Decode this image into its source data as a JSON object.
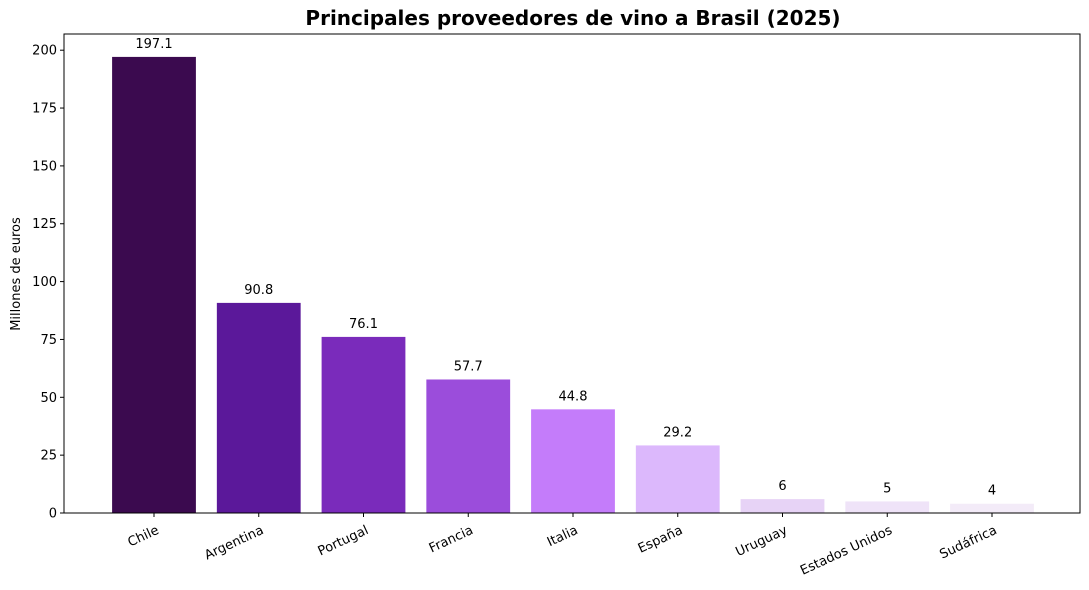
{
  "chart_data": {
    "type": "bar",
    "title": "Principales proveedores de vino a Brasil (2025)",
    "xlabel": "",
    "ylabel": "Millones de euros",
    "categories": [
      "Chile",
      "Argentina",
      "Portugal",
      "Francia",
      "Italia",
      "España",
      "Uruguay",
      "Estados Unidos",
      "Sudáfrica"
    ],
    "values": [
      197.1,
      90.8,
      76.1,
      57.7,
      44.8,
      29.2,
      6,
      5,
      4
    ],
    "value_labels": [
      "197.1",
      "90.8",
      "76.1",
      "57.7",
      "44.8",
      "29.2",
      "6",
      "5",
      "4"
    ],
    "colors": [
      "#3b0a4f",
      "#5b189a",
      "#7a2bbb",
      "#9b4ddb",
      "#c47cfa",
      "#dcb8fc",
      "#e7d3f6",
      "#efe3f8",
      "#f3ebf8"
    ],
    "ylim": [
      0,
      207
    ],
    "yticks": [
      0,
      25,
      50,
      75,
      100,
      125,
      150,
      175,
      200
    ],
    "grid": false,
    "legend": "none"
  }
}
